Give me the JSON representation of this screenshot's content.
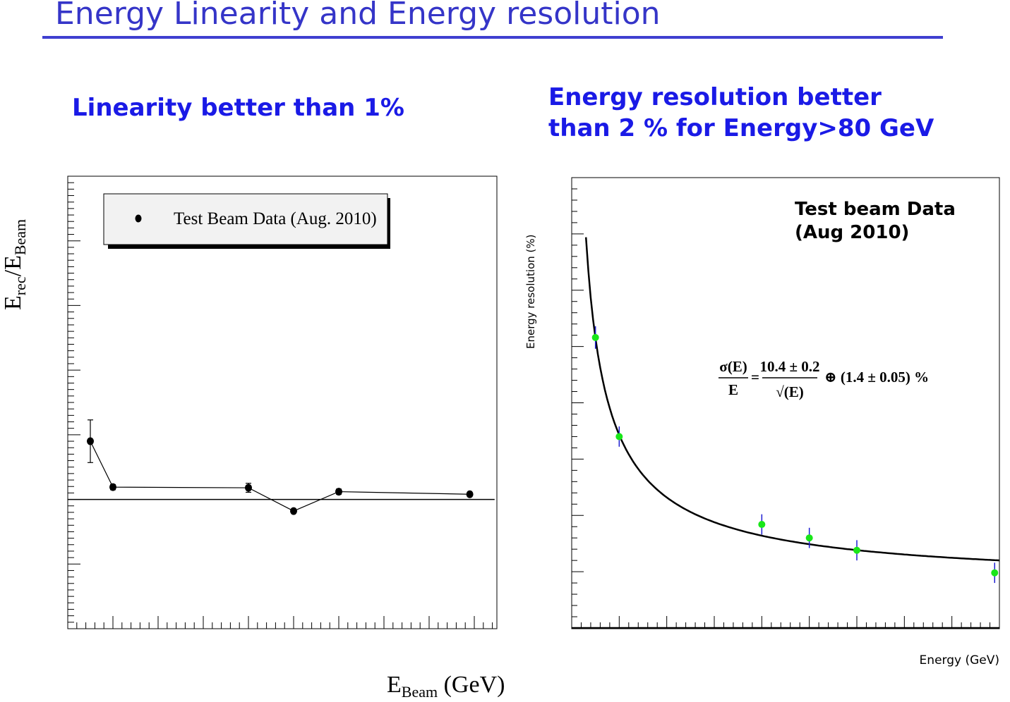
{
  "slide_title": "Energy Linearity and Energy resolution",
  "captions": {
    "left": "Linearity better than 1%",
    "right_line1": "Energy resolution better",
    "right_line2": "than 2 % for Energy>80 GeV"
  },
  "chart_data": [
    {
      "type": "scatter",
      "ylabel_main": "E",
      "ylabel_sub_num": "rec",
      "ylabel_slash": "/E",
      "ylabel_sub_den": "Beam",
      "xlabel_main": "E",
      "xlabel_sub": "Beam",
      "xlabel_unit": " (GeV)",
      "xlim": [
        0,
        190
      ],
      "ylim": [
        0.98,
        1.05
      ],
      "x_ticks": [
        "0",
        "20",
        "40",
        "60",
        "80",
        "100",
        "120",
        "140",
        "160",
        "180"
      ],
      "y_ticks": [
        "0.98",
        "0.99",
        "1",
        "1.01",
        "1.02",
        "1.03",
        "1.04",
        "1.05"
      ],
      "reference_line": 1.0,
      "legend": {
        "label": "Test Beam Data (Aug. 2010)",
        "position": "top"
      },
      "series": [
        {
          "name": "Test Beam Data (Aug. 2010)",
          "x": [
            10,
            20,
            80,
            100,
            120,
            178
          ],
          "y": [
            1.009,
            1.0019,
            1.0018,
            0.9982,
            1.0012,
            1.0008
          ],
          "yerr": [
            0.0033,
            0.0004,
            0.0007,
            0.0003,
            0.0004,
            0.0003
          ]
        }
      ]
    },
    {
      "type": "scatter",
      "ylabel": "Energy resolution (%)",
      "xlabel": "Energy  (GeV)",
      "xlim": [
        0,
        180
      ],
      "ylim": [
        0.01,
        0.05
      ],
      "x_ticks": [
        "0",
        "20",
        "40",
        "60",
        "80",
        "100",
        "120",
        "140",
        "160",
        "180"
      ],
      "y_ticks": [
        "0.01",
        "0.015",
        "0.02",
        "0.025",
        "0.03",
        "0.035",
        "0.04",
        "0.045",
        "0.05"
      ],
      "annotation_line1": "Test beam Data",
      "annotation_line2": "(Aug 2010)",
      "formula": {
        "lhs_num": "σ(E)",
        "lhs_den": "E",
        "eq": "=",
        "rhs_num": "10.4 ± 0.2",
        "rhs_den": "√(E)",
        "rhs_tail": "⊕ (1.4 ± 0.05) %"
      },
      "fit": {
        "stochastic": 0.104,
        "constant": 0.014,
        "x_range": [
          6,
          180
        ]
      },
      "colors": {
        "points": "#19e619",
        "errors": "#1e1ed2",
        "fit": "#000000"
      },
      "series": [
        {
          "x": [
            10,
            20,
            80,
            100,
            120,
            178
          ],
          "y": [
            0.0358,
            0.027,
            0.0192,
            0.018,
            0.0169,
            0.0149
          ],
          "yerr": [
            0.001,
            0.0009,
            0.0009,
            0.0009,
            0.0009,
            0.0009
          ]
        }
      ]
    }
  ]
}
